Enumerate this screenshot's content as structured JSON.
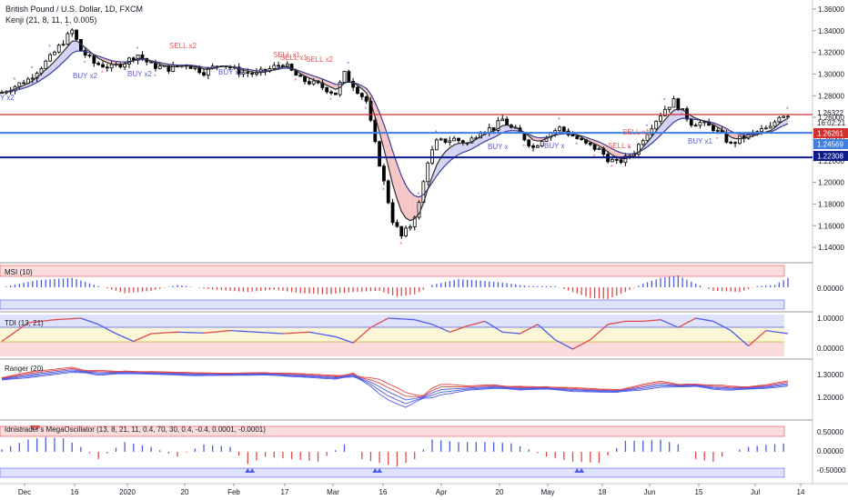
{
  "header": {
    "symbol_title": "British Pound / U.S. Dollar, 1D, FXCM",
    "indicator_title": "Kenji (21, 8, 11, 1, 0.005)"
  },
  "colors": {
    "background": "#ffffff",
    "candle": "#000000",
    "ma_fast": "#2f2f2f",
    "ma_slow": "#3a3f99",
    "band_fill_up": "#c9c9f3",
    "band_fill_down": "#f4b8b8",
    "buy_label": "#5b5bd6",
    "sell_label": "#e05a5a",
    "red_line": "#d32f2f",
    "blue_line": "#3f7fe0",
    "navy_line": "#0d1a8a",
    "osc_pos": "#4d5be8",
    "osc_neg": "#e04848",
    "zone_red": "#fadcdc",
    "zone_blue": "#dfe2fb",
    "zone_yellow": "#fbf6d6"
  },
  "price_axis": {
    "ticks": [
      "1.36000",
      "1.34000",
      "1.32000",
      "1.30000",
      "1.28000",
      "1.26000",
      "1.24000",
      "1.22000",
      "1.20000",
      "1.18000",
      "1.16000",
      "1.14000"
    ],
    "current_price": "1.26322",
    "countdown": "16:02:21",
    "hline_labels": [
      {
        "value": "1.26261",
        "color": "#d32f2f"
      },
      {
        "value": "1.24569",
        "color": "#3f7fe0"
      },
      {
        "value": "1.22308",
        "color": "#0d1a8a"
      }
    ]
  },
  "time_axis": {
    "labels": [
      "Dec",
      "16",
      "2020",
      "20",
      "Feb",
      "17",
      "Mar",
      "16",
      "Apr",
      "20",
      "May",
      "18",
      "Jun",
      "15",
      "Jul",
      "14"
    ]
  },
  "signal_labels": [
    {
      "text": "Y x2",
      "color": "#5b5bd6"
    },
    {
      "text": "BUY x2",
      "color": "#5b5bd6"
    },
    {
      "text": "BUY x2",
      "color": "#5b5bd6"
    },
    {
      "text": "SELL x2",
      "color": "#e05a5a"
    },
    {
      "text": "BUY x2",
      "color": "#5b5bd6"
    },
    {
      "text": "SELL x1",
      "color": "#e05a5a"
    },
    {
      "text": "SELL x1",
      "color": "#e05a5a"
    },
    {
      "text": "SELL x2",
      "color": "#e05a5a"
    },
    {
      "text": "BUY x",
      "color": "#5b5bd6"
    },
    {
      "text": "BUY x",
      "color": "#5b5bd6"
    },
    {
      "text": "SELL x",
      "color": "#e05a5a"
    },
    {
      "text": "SELL x1",
      "color": "#e05a5a"
    },
    {
      "text": "BUY x1",
      "color": "#5b5bd6"
    }
  ],
  "panels": [
    {
      "title": "MSI (10)",
      "ticks": [
        "0.00000"
      ]
    },
    {
      "title": "TDI (13, 21)",
      "ticks": [
        "1.00000",
        "0.00000"
      ]
    },
    {
      "title": "Ranger (20)",
      "ticks": [
        "1.30000",
        "1.20000"
      ]
    },
    {
      "title": "Idnistrader's MegaOscillator (13, 8, 21, 11, 0.4, 70, 30, 0.4, -0.4, 0.0001, -0.0001)",
      "ticks": [
        "0.50000",
        "0.00000",
        "-0.50000"
      ]
    }
  ],
  "chart_data": {
    "type": "candlestick",
    "title": "British Pound / U.S. Dollar, 1D, FXCM",
    "x": [
      "Dec",
      "16",
      "2020",
      "20",
      "Feb",
      "17",
      "Mar",
      "16",
      "Apr",
      "20",
      "May",
      "18",
      "Jun",
      "15",
      "Jul",
      "14"
    ],
    "ylim": [
      1.13,
      1.365
    ],
    "y_ticks": [
      1.36,
      1.34,
      1.32,
      1.3,
      1.28,
      1.26,
      1.24,
      1.22,
      1.2,
      1.18,
      1.16,
      1.14
    ],
    "close_path": [
      [
        0,
        1.283
      ],
      [
        6,
        1.295
      ],
      [
        11,
        1.315
      ],
      [
        14,
        1.33
      ],
      [
        16,
        1.34
      ],
      [
        18,
        1.322
      ],
      [
        21,
        1.31
      ],
      [
        25,
        1.306
      ],
      [
        28,
        1.311
      ],
      [
        31,
        1.318
      ],
      [
        34,
        1.308
      ],
      [
        38,
        1.305
      ],
      [
        42,
        1.309
      ],
      [
        46,
        1.302
      ],
      [
        50,
        1.31
      ],
      [
        54,
        1.302
      ],
      [
        58,
        1.3
      ],
      [
        60,
        1.303
      ],
      [
        64,
        1.31
      ],
      [
        68,
        1.295
      ],
      [
        72,
        1.29
      ],
      [
        76,
        1.282
      ],
      [
        78,
        1.3
      ],
      [
        81,
        1.285
      ],
      [
        83,
        1.275
      ],
      [
        85,
        1.235
      ],
      [
        87,
        1.2
      ],
      [
        89,
        1.165
      ],
      [
        91,
        1.15
      ],
      [
        93,
        1.16
      ],
      [
        95,
        1.18
      ],
      [
        97,
        1.22
      ],
      [
        99,
        1.237
      ],
      [
        103,
        1.24
      ],
      [
        106,
        1.236
      ],
      [
        109,
        1.248
      ],
      [
        112,
        1.25
      ],
      [
        114,
        1.258
      ],
      [
        116,
        1.25
      ],
      [
        118,
        1.245
      ],
      [
        121,
        1.232
      ],
      [
        124,
        1.244
      ],
      [
        127,
        1.25
      ],
      [
        130,
        1.243
      ],
      [
        133,
        1.235
      ],
      [
        136,
        1.23
      ],
      [
        138,
        1.222
      ],
      [
        140,
        1.218
      ],
      [
        142,
        1.222
      ],
      [
        144,
        1.228
      ],
      [
        146,
        1.241
      ],
      [
        149,
        1.258
      ],
      [
        151,
        1.268
      ],
      [
        153,
        1.275
      ],
      [
        155,
        1.265
      ],
      [
        157,
        1.255
      ],
      [
        159,
        1.255
      ],
      [
        162,
        1.25
      ],
      [
        164,
        1.243
      ],
      [
        166,
        1.235
      ],
      [
        168,
        1.24
      ],
      [
        171,
        1.245
      ],
      [
        173,
        1.248
      ],
      [
        175,
        1.25
      ],
      [
        177,
        1.262
      ],
      [
        179,
        1.263
      ]
    ],
    "msi_path": [
      [
        0,
        0.0
      ],
      [
        8,
        0.6
      ],
      [
        16,
        0.8
      ],
      [
        22,
        0.1
      ],
      [
        28,
        -0.5
      ],
      [
        34,
        -0.3
      ],
      [
        40,
        0.2
      ],
      [
        48,
        -0.2
      ],
      [
        56,
        -0.4
      ],
      [
        62,
        -0.2
      ],
      [
        68,
        -0.5
      ],
      [
        74,
        -0.6
      ],
      [
        80,
        -0.4
      ],
      [
        86,
        -0.3
      ],
      [
        90,
        -0.8
      ],
      [
        94,
        -0.6
      ],
      [
        98,
        0.2
      ],
      [
        104,
        0.7
      ],
      [
        108,
        0.6
      ],
      [
        114,
        0.4
      ],
      [
        120,
        0.1
      ],
      [
        126,
        0.1
      ],
      [
        130,
        -0.4
      ],
      [
        134,
        -0.9
      ],
      [
        138,
        -1.0
      ],
      [
        142,
        -0.4
      ],
      [
        146,
        0.3
      ],
      [
        150,
        0.8
      ],
      [
        154,
        1.0
      ],
      [
        158,
        0.3
      ],
      [
        162,
        -0.3
      ],
      [
        168,
        -0.4
      ],
      [
        172,
        0.1
      ],
      [
        176,
        0.2
      ],
      [
        179,
        0.8
      ]
    ],
    "tdi_path": [
      [
        0,
        0.25
      ],
      [
        6,
        0.85
      ],
      [
        12,
        0.95
      ],
      [
        18,
        1.0
      ],
      [
        22,
        0.8
      ],
      [
        26,
        0.5
      ],
      [
        30,
        0.25
      ],
      [
        34,
        0.5
      ],
      [
        40,
        0.55
      ],
      [
        46,
        0.52
      ],
      [
        52,
        0.6
      ],
      [
        58,
        0.55
      ],
      [
        64,
        0.5
      ],
      [
        70,
        0.55
      ],
      [
        76,
        0.4
      ],
      [
        80,
        0.2
      ],
      [
        84,
        0.7
      ],
      [
        88,
        1.0
      ],
      [
        94,
        0.95
      ],
      [
        98,
        0.8
      ],
      [
        102,
        0.55
      ],
      [
        106,
        0.75
      ],
      [
        110,
        0.9
      ],
      [
        114,
        0.55
      ],
      [
        118,
        0.5
      ],
      [
        122,
        0.8
      ],
      [
        126,
        0.3
      ],
      [
        130,
        0.0
      ],
      [
        134,
        0.3
      ],
      [
        138,
        0.8
      ],
      [
        142,
        0.9
      ],
      [
        146,
        0.9
      ],
      [
        150,
        0.95
      ],
      [
        154,
        0.7
      ],
      [
        158,
        1.0
      ],
      [
        162,
        0.9
      ],
      [
        166,
        0.6
      ],
      [
        170,
        0.1
      ],
      [
        174,
        0.6
      ],
      [
        179,
        0.5
      ]
    ],
    "ranger_path": [
      [
        0,
        1.28
      ],
      [
        8,
        1.3
      ],
      [
        16,
        1.318
      ],
      [
        22,
        1.305
      ],
      [
        28,
        1.308
      ],
      [
        36,
        1.305
      ],
      [
        44,
        1.3
      ],
      [
        52,
        1.3
      ],
      [
        60,
        1.302
      ],
      [
        68,
        1.295
      ],
      [
        76,
        1.286
      ],
      [
        80,
        1.296
      ],
      [
        84,
        1.262
      ],
      [
        88,
        1.215
      ],
      [
        92,
        1.18
      ],
      [
        96,
        1.2
      ],
      [
        100,
        1.228
      ],
      [
        106,
        1.238
      ],
      [
        112,
        1.245
      ],
      [
        118,
        1.238
      ],
      [
        124,
        1.24
      ],
      [
        130,
        1.232
      ],
      [
        136,
        1.228
      ],
      [
        140,
        1.226
      ],
      [
        144,
        1.236
      ],
      [
        150,
        1.254
      ],
      [
        154,
        1.25
      ],
      [
        158,
        1.252
      ],
      [
        162,
        1.242
      ],
      [
        166,
        1.238
      ],
      [
        170,
        1.24
      ],
      [
        174,
        1.245
      ],
      [
        179,
        1.258
      ]
    ],
    "mega_path": [
      [
        0,
        0.1
      ],
      [
        6,
        0.5
      ],
      [
        10,
        0.6
      ],
      [
        14,
        0.55
      ],
      [
        18,
        0.2
      ],
      [
        22,
        -0.3
      ],
      [
        28,
        0.4
      ],
      [
        34,
        0.2
      ],
      [
        40,
        -0.2
      ],
      [
        46,
        0.3
      ],
      [
        52,
        0.2
      ],
      [
        56,
        -0.5
      ],
      [
        60,
        -0.2
      ],
      [
        66,
        -0.3
      ],
      [
        72,
        -0.4
      ],
      [
        78,
        0.3
      ],
      [
        82,
        -0.3
      ],
      [
        86,
        -0.45
      ],
      [
        90,
        -0.6
      ],
      [
        94,
        -0.3
      ],
      [
        98,
        0.5
      ],
      [
        104,
        0.4
      ],
      [
        110,
        0.4
      ],
      [
        116,
        0.35
      ],
      [
        120,
        0.1
      ],
      [
        124,
        -0.2
      ],
      [
        130,
        -0.4
      ],
      [
        136,
        -0.45
      ],
      [
        142,
        0.45
      ],
      [
        146,
        0.45
      ],
      [
        150,
        0.5
      ],
      [
        154,
        0.3
      ],
      [
        158,
        -0.3
      ],
      [
        162,
        -0.4
      ],
      [
        166,
        0.0
      ],
      [
        170,
        0.2
      ],
      [
        175,
        0.3
      ],
      [
        179,
        0.35
      ]
    ],
    "horizontal_levels": [
      1.26261,
      1.24569,
      1.22308
    ]
  }
}
